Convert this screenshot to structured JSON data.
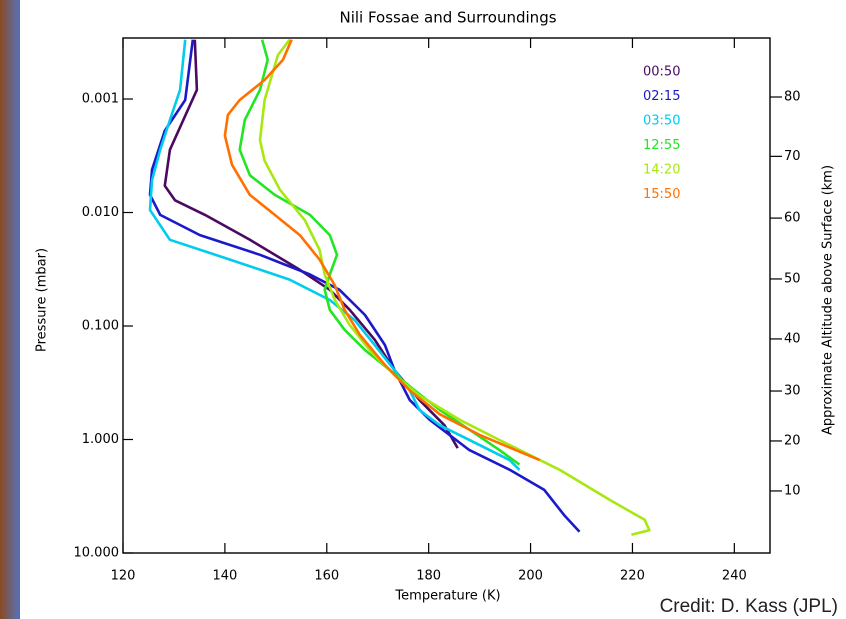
{
  "chart_data": {
    "type": "line",
    "title": "Nili Fossae and Surroundings",
    "x_label": "Temperature (K)",
    "y_label": "Pressure (mbar)",
    "y2_label": "Approximate Altitude above Surface (km)",
    "credit": "Credit: D. Kass (JPL)",
    "xlim": [
      120,
      247
    ],
    "xticks": [
      120,
      140,
      160,
      180,
      200,
      220,
      240
    ],
    "ylim": [
      0.00029,
      10
    ],
    "y_log": true,
    "y_inverted": true,
    "yticks": [
      {
        "value": 0.001,
        "label": "0.001"
      },
      {
        "value": 0.01,
        "label": "0.010"
      },
      {
        "value": 0.1,
        "label": "0.100"
      },
      {
        "value": 1,
        "label": "1.000"
      },
      {
        "value": 10,
        "label": "10.000"
      }
    ],
    "y2ticks": [
      80,
      70,
      60,
      50,
      40,
      30,
      20,
      10
    ],
    "y2tick_pressure": [
      0.00096,
      0.0032,
      0.0112,
      0.0385,
      0.13,
      0.374,
      1.03,
      2.84
    ],
    "legend": "upper right",
    "series": [
      {
        "name": "00:50",
        "color": "#4b0a60",
        "temperature": [
          134.1,
          134.5,
          129.2,
          128.2,
          130.2,
          136.1,
          144.9,
          154.7,
          160.6,
          164.5,
          169.4,
          173.3,
          178.2,
          183.1,
          185.7
        ],
        "pressure": [
          0.0003,
          0.00083,
          0.0028,
          0.0058,
          0.0078,
          0.0105,
          0.0174,
          0.032,
          0.048,
          0.072,
          0.132,
          0.245,
          0.45,
          0.75,
          1.19
        ]
      },
      {
        "name": "02:15",
        "color": "#1a1acc",
        "temperature": [
          133.7,
          132.2,
          128.2,
          125.7,
          125.3,
          127.3,
          135.1,
          146.9,
          156.7,
          162.5,
          167.5,
          171.4,
          173.3,
          176.3,
          180.2,
          188.0,
          195.9,
          202.7,
          206.7,
          209.6
        ],
        "pressure": [
          0.0003,
          0.00102,
          0.0019,
          0.0042,
          0.007,
          0.0105,
          0.0158,
          0.0236,
          0.0352,
          0.048,
          0.08,
          0.147,
          0.245,
          0.45,
          0.67,
          1.24,
          1.85,
          2.78,
          4.7,
          6.5
        ]
      },
      {
        "name": "03:50",
        "color": "#00ccee",
        "temperature": [
          132.2,
          131.2,
          129.2,
          127.3,
          125.7,
          125.3,
          129.2,
          141.0,
          152.7,
          160.6,
          165.5,
          169.4,
          173.3,
          176.3,
          178.2,
          182.2,
          190.0,
          195.9,
          197.8
        ],
        "pressure": [
          0.0003,
          0.00083,
          0.00153,
          0.0028,
          0.0052,
          0.0095,
          0.0174,
          0.026,
          0.039,
          0.059,
          0.089,
          0.147,
          0.245,
          0.37,
          0.55,
          0.75,
          1.12,
          1.52,
          1.85
        ]
      },
      {
        "name": "12:55",
        "color": "#22e622",
        "temperature": [
          147.3,
          148.4,
          146.9,
          143.9,
          142.9,
          144.9,
          149.8,
          156.7,
          160.6,
          162.0,
          160.6,
          159.6,
          160.6,
          163.5,
          167.5,
          172.4,
          177.3,
          182.2,
          188.0,
          193.9,
          197.8
        ],
        "pressure": [
          0.0003,
          0.00045,
          0.00083,
          0.00153,
          0.0028,
          0.0047,
          0.007,
          0.0105,
          0.0158,
          0.0236,
          0.0352,
          0.048,
          0.072,
          0.108,
          0.163,
          0.245,
          0.37,
          0.55,
          0.82,
          1.24,
          1.66
        ]
      },
      {
        "name": "14:20",
        "color": "#a8e810",
        "temperature": [
          152.7,
          150.4,
          147.8,
          146.9,
          147.8,
          150.8,
          155.7,
          158.6,
          159.6,
          161.6,
          164.5,
          168.4,
          173.3,
          178.2,
          186.1,
          193.9,
          205.7,
          215.5,
          222.4,
          223.3,
          219.8
        ],
        "pressure": [
          0.0003,
          0.00041,
          0.00102,
          0.0023,
          0.0035,
          0.0063,
          0.0117,
          0.0214,
          0.0352,
          0.059,
          0.098,
          0.163,
          0.27,
          0.41,
          0.67,
          1.01,
          1.85,
          3.4,
          5.1,
          6.3,
          6.9
        ]
      },
      {
        "name": "15:50",
        "color": "#ff7000",
        "temperature": [
          153.1,
          151.4,
          147.8,
          142.9,
          140.6,
          140.0,
          141.4,
          144.9,
          149.8,
          154.7,
          158.6,
          161.6,
          163.5,
          166.5,
          171.4,
          176.3,
          182.2,
          190.0,
          201.8
        ],
        "pressure": [
          0.0003,
          0.00045,
          0.00068,
          0.00102,
          0.00138,
          0.0021,
          0.0038,
          0.007,
          0.0105,
          0.0158,
          0.026,
          0.044,
          0.072,
          0.12,
          0.22,
          0.37,
          0.6,
          0.91,
          1.52
        ]
      }
    ]
  }
}
